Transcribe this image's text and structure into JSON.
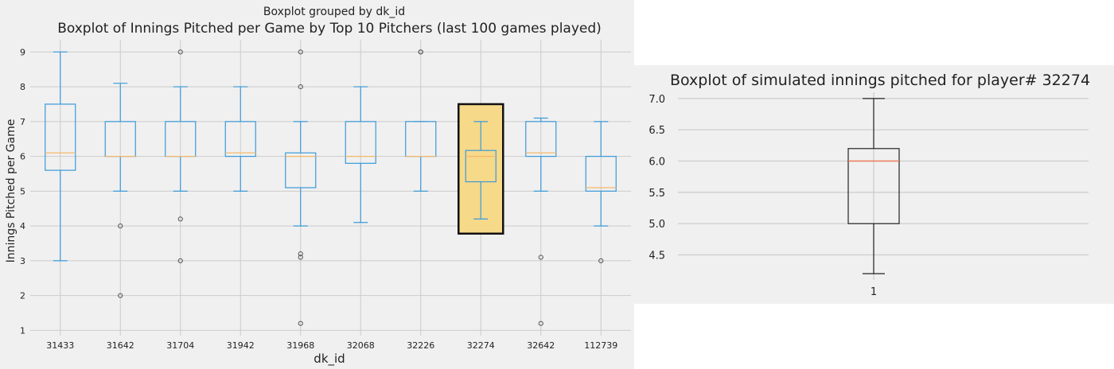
{
  "chart_data": [
    {
      "type": "boxplot",
      "suptitle": "Boxplot grouped by dk_id",
      "title": "Boxplot of Innings Pitched per Game by Top 10 Pitchers (last 100 games played)",
      "xlabel": "dk_id",
      "ylabel": "Innings Pitched per Game",
      "ylim": [
        0.85,
        9.35
      ],
      "yticks": [
        1,
        2,
        3,
        4,
        5,
        6,
        7,
        8,
        9
      ],
      "grid": true,
      "highlight": {
        "category": "32274",
        "y_range": [
          3.78,
          7.5
        ],
        "color": "#f7d98a"
      },
      "categories": [
        "31433",
        "31642",
        "31704",
        "31942",
        "31968",
        "32068",
        "32226",
        "32274",
        "32642",
        "112739"
      ],
      "boxes": [
        {
          "whisker_low": 3,
          "q1": 5.6,
          "median": 6.1,
          "q3": 7.5,
          "whisker_high": 9,
          "fliers": []
        },
        {
          "whisker_low": 5,
          "q1": 6,
          "median": 6,
          "q3": 7,
          "whisker_high": 8.1,
          "fliers": [
            4,
            2
          ]
        },
        {
          "whisker_low": 5,
          "q1": 6,
          "median": 6,
          "q3": 7,
          "whisker_high": 8,
          "fliers": [
            9,
            4.2,
            3
          ]
        },
        {
          "whisker_low": 5,
          "q1": 6,
          "median": 6.1,
          "q3": 7,
          "whisker_high": 8,
          "fliers": []
        },
        {
          "whisker_low": 4,
          "q1": 5.1,
          "median": 6,
          "q3": 6.1,
          "whisker_high": 7,
          "fliers": [
            9,
            8,
            3.2,
            3.1,
            1.2
          ]
        },
        {
          "whisker_low": 4.1,
          "q1": 5.8,
          "median": 6,
          "q3": 7,
          "whisker_high": 8,
          "fliers": []
        },
        {
          "whisker_low": 5,
          "q1": 6,
          "median": 6,
          "q3": 7,
          "whisker_high": 7,
          "fliers": [
            9,
            9
          ]
        },
        {
          "whisker_low": 4.2,
          "q1": 5.27,
          "median": 6,
          "q3": 6.17,
          "whisker_high": 7,
          "fliers": []
        },
        {
          "whisker_low": 5,
          "q1": 6,
          "median": 6.1,
          "q3": 7,
          "whisker_high": 7.1,
          "fliers": [
            3.1,
            1.2
          ]
        },
        {
          "whisker_low": 4,
          "q1": 5,
          "median": 5.1,
          "q3": 6,
          "whisker_high": 7,
          "fliers": [
            3
          ]
        }
      ],
      "colors": {
        "background": "#f0f0f0",
        "grid": "#cbcbcb",
        "box": "#3a9ad9",
        "median": "#f5b86a",
        "flier": "#555555",
        "text": "#222222"
      }
    },
    {
      "type": "boxplot",
      "title": "Boxplot of simulated innings pitched for player# 32274",
      "ylim": [
        4.1,
        7.1
      ],
      "yticks": [
        "4.5",
        "5.0",
        "5.5",
        "6.0",
        "6.5",
        "7.0"
      ],
      "ytick_values": [
        4.5,
        5.0,
        5.5,
        6.0,
        6.5,
        7.0
      ],
      "grid": true,
      "categories": [
        "1"
      ],
      "boxes": [
        {
          "whisker_low": 4.2,
          "q1": 5.0,
          "median": 6.0,
          "q3": 6.2,
          "whisker_high": 7.0,
          "fliers": []
        }
      ],
      "colors": {
        "background": "#f0f0f0",
        "grid": "#cbcbcb",
        "box": "#222222",
        "median": "#f07a5a",
        "text": "#222222"
      }
    }
  ]
}
